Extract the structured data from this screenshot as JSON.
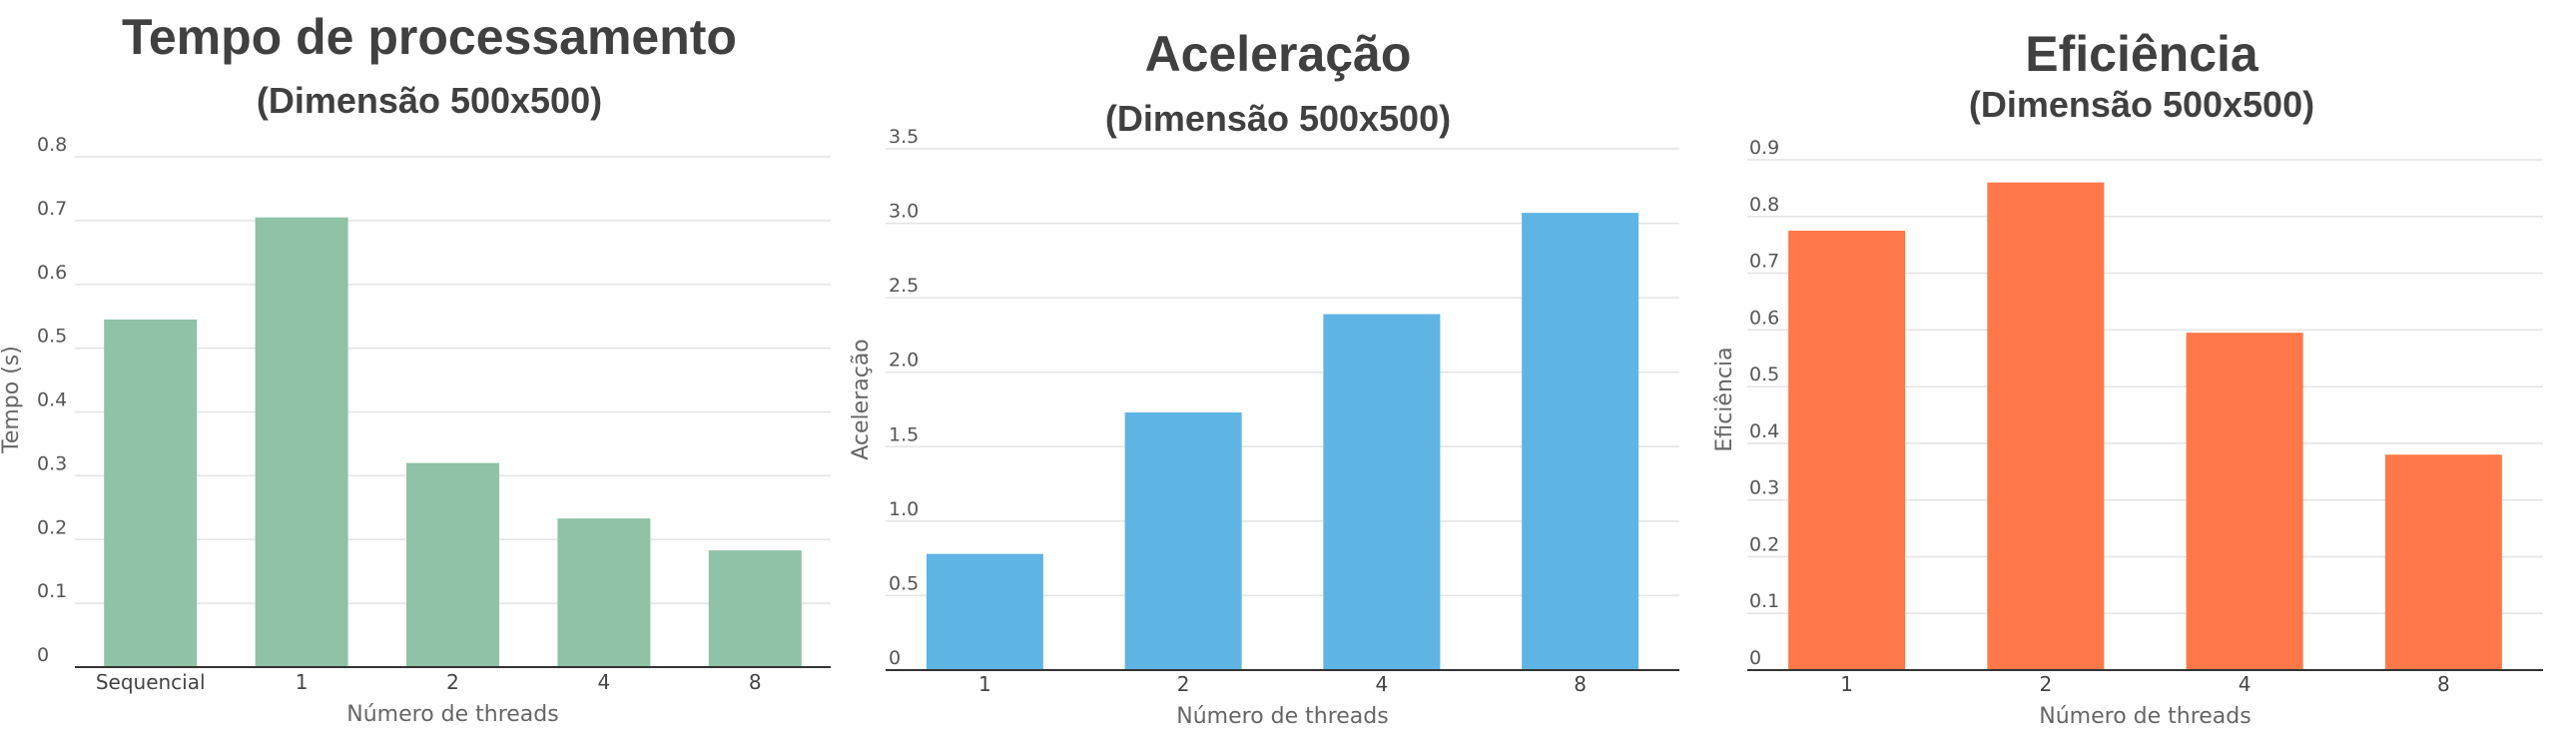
{
  "chart_data": [
    {
      "type": "bar",
      "title": "Tempo de processamento",
      "subtitle": "(Dimensão 500x500)",
      "xlabel": "Número de threads",
      "ylabel": "Tempo (s)",
      "categories": [
        "Sequencial",
        "1",
        "2",
        "4",
        "8"
      ],
      "values": [
        0.545,
        0.705,
        0.32,
        0.233,
        0.183
      ],
      "ylim": [
        0,
        0.8
      ],
      "yticks": [
        "0",
        "0.1",
        "0.2",
        "0.3",
        "0.4",
        "0.5",
        "0.6",
        "0.7",
        "0.8"
      ],
      "color": "#8fc2a6",
      "grid": true
    },
    {
      "type": "bar",
      "title": "Aceleração",
      "subtitle": "(Dimensão 500x500)",
      "xlabel": "Número de threads",
      "ylabel": "Aceleração",
      "categories": [
        "1",
        "2",
        "4",
        "8"
      ],
      "values": [
        0.78,
        1.73,
        2.39,
        3.07
      ],
      "ylim": [
        0,
        3.5
      ],
      "yticks": [
        "0",
        "0.5",
        "1.0",
        "1.5",
        "2.0",
        "2.5",
        "3.0",
        "3.5"
      ],
      "color": "#5eb5e4",
      "grid": true
    },
    {
      "type": "bar",
      "title": "Eficiência",
      "subtitle": "(Dimensão 500x500)",
      "xlabel": "Número de threads",
      "ylabel": "Eficiência",
      "categories": [
        "1",
        "2",
        "4",
        "8"
      ],
      "values": [
        0.775,
        0.86,
        0.595,
        0.38
      ],
      "ylim": [
        0,
        0.9
      ],
      "yticks": [
        "0",
        "0.1",
        "0.2",
        "0.3",
        "0.4",
        "0.5",
        "0.6",
        "0.7",
        "0.8",
        "0.9"
      ],
      "color": "#ff7849",
      "grid": true
    }
  ]
}
